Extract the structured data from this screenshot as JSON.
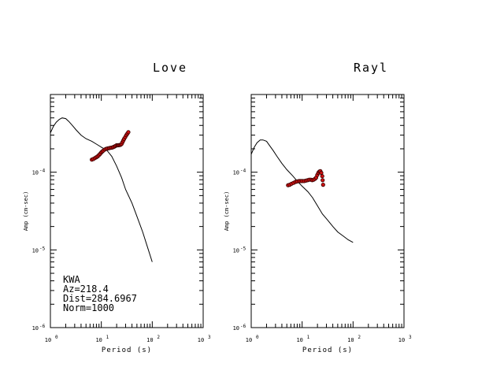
{
  "chart_data": [
    {
      "type": "line",
      "title": "Love",
      "xlabel": "Period (s)",
      "ylabel": "Amp (cm-sec)",
      "x_scale": "log",
      "y_scale": "log",
      "xlim": [
        1,
        1000
      ],
      "ylim": [
        1e-06,
        0.001
      ],
      "x_tick_labels": [
        {
          "base": "10",
          "exp": "0"
        },
        {
          "base": "10",
          "exp": "1"
        },
        {
          "base": "10",
          "exp": "2"
        },
        {
          "base": "10",
          "exp": "3"
        }
      ],
      "y_tick_labels": [
        {
          "base": "10",
          "exp": "-4"
        },
        {
          "base": "10",
          "exp": "-5"
        },
        {
          "base": "10",
          "exp": "-6"
        }
      ],
      "series": [
        {
          "kind": "line",
          "color": "#000000",
          "x": [
            1.0,
            1.15,
            1.3,
            1.5,
            1.7,
            2.0,
            2.3,
            2.7,
            3.2,
            4.0,
            5.0,
            6.5,
            8.0,
            10.0,
            13.0,
            16.0,
            20.0,
            25.0,
            30.0,
            40.0,
            50.0,
            65.0,
            80.0,
            100.0
          ],
          "y": [
            0.00032,
            0.00039,
            0.00044,
            0.00048,
            0.0005,
            0.00049,
            0.00045,
            0.0004,
            0.00035,
            0.0003,
            0.00027,
            0.00025,
            0.00023,
            0.00021,
            0.00019,
            0.00016,
            0.00012,
            8.5e-05,
            6e-05,
            4e-05,
            2.7e-05,
            1.7e-05,
            1.1e-05,
            7e-06
          ]
        },
        {
          "kind": "scatter",
          "color": "#cc1111",
          "x": [
            6.5,
            7.0,
            7.5,
            8.0,
            8.5,
            9.0,
            9.5,
            10.0,
            10.5,
            11.0,
            11.7,
            12.5,
            13.3,
            14.2,
            15.0,
            16.0,
            17.0,
            18.0,
            19.0,
            20.0,
            21.0,
            22.0,
            23.0,
            24.0,
            25.0,
            26.0,
            27.0,
            28.0,
            29.5,
            31.0,
            32.5,
            34.0
          ],
          "y": [
            0.000145,
            0.000148,
            0.000152,
            0.000156,
            0.00016,
            0.000166,
            0.000172,
            0.00018,
            0.000185,
            0.00019,
            0.000196,
            0.0002,
            0.000202,
            0.000204,
            0.000206,
            0.000207,
            0.00021,
            0.000214,
            0.000218,
            0.000222,
            0.000222,
            0.000223,
            0.000224,
            0.000226,
            0.000231,
            0.000243,
            0.000256,
            0.000268,
            0.000283,
            0.0003,
            0.000314,
            0.000328
          ]
        }
      ]
    },
    {
      "type": "line",
      "title": "Rayl",
      "xlabel": "Period (s)",
      "ylabel": "Amp (cm-sec)",
      "x_scale": "log",
      "y_scale": "log",
      "xlim": [
        1,
        1000
      ],
      "ylim": [
        1e-06,
        0.001
      ],
      "x_tick_labels": [
        {
          "base": "10",
          "exp": "0"
        },
        {
          "base": "10",
          "exp": "1"
        },
        {
          "base": "10",
          "exp": "2"
        },
        {
          "base": "10",
          "exp": "3"
        }
      ],
      "y_tick_labels": [
        {
          "base": "10",
          "exp": "-4"
        },
        {
          "base": "10",
          "exp": "-5"
        },
        {
          "base": "10",
          "exp": "-6"
        }
      ],
      "series": [
        {
          "kind": "line",
          "color": "#000000",
          "x": [
            1.0,
            1.15,
            1.3,
            1.5,
            1.7,
            2.0,
            2.3,
            2.7,
            3.2,
            4.0,
            5.0,
            6.5,
            8.0,
            10.0,
            13.0,
            16.0,
            20.0,
            25.0,
            32.0,
            40.0,
            50.0,
            65.0,
            80.0,
            100.0
          ],
          "y": [
            0.00017,
            0.00021,
            0.00024,
            0.00026,
            0.00026,
            0.00025,
            0.00022,
            0.00019,
            0.00016,
            0.00013,
            0.000108,
            9e-05,
            7.7e-05,
            6.6e-05,
            5.6e-05,
            4.7e-05,
            3.7e-05,
            2.9e-05,
            2.4e-05,
            2e-05,
            1.7e-05,
            1.5e-05,
            1.35e-05,
            1.25e-05
          ]
        },
        {
          "kind": "scatter",
          "color": "#cc1111",
          "x": [
            5.3,
            5.7,
            6.2,
            6.8,
            7.4,
            8.0,
            8.7,
            9.4,
            10.1,
            11.0,
            11.9,
            12.8,
            13.8,
            14.8,
            15.8,
            16.8,
            17.8,
            18.8,
            19.8,
            20.8,
            21.8,
            22.8,
            23.8,
            24.8,
            25.3,
            25.8
          ],
          "y": [
            6.8e-05,
            6.9e-05,
            7.1e-05,
            7.3e-05,
            7.5e-05,
            7.6e-05,
            7.7e-05,
            7.7e-05,
            7.7e-05,
            7.7e-05,
            7.8e-05,
            7.9e-05,
            8e-05,
            8e-05,
            7.9e-05,
            8e-05,
            8.2e-05,
            8.5e-05,
            9.2e-05,
            9.8e-05,
            0.000102,
            0.000103,
            9.8e-05,
            8.9e-05,
            7.9e-05,
            6.9e-05
          ]
        }
      ]
    }
  ],
  "station_info": [
    "KWA",
    "Az=218.4",
    "Dist=284.6967",
    "Norm=1000"
  ]
}
